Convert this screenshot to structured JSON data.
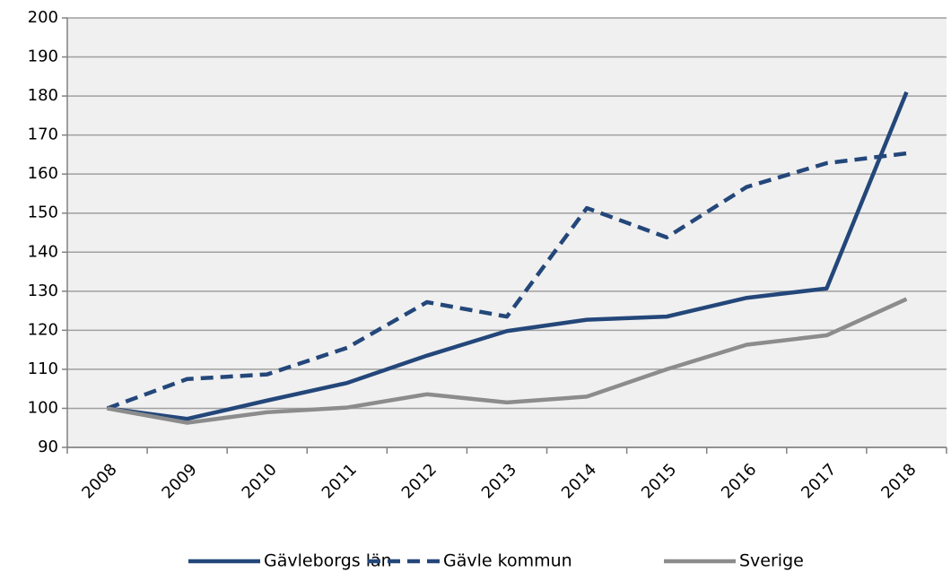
{
  "chart_data": {
    "type": "line",
    "categories": [
      "2008",
      "2009",
      "2010",
      "2011",
      "2012",
      "2013",
      "2014",
      "2015",
      "2016",
      "2017",
      "2018"
    ],
    "series": [
      {
        "name": "Gävleborgs län",
        "color": "#24477a",
        "line_style": "solid",
        "values": [
          100,
          97.3,
          102,
          106.5,
          113.5,
          119.8,
          122.7,
          123.5,
          128.3,
          130.7,
          181
        ]
      },
      {
        "name": "Gävle kommun",
        "color": "#24477a",
        "line_style": "dashed",
        "values": [
          100,
          107.5,
          108.7,
          115.5,
          127.2,
          123.5,
          151.3,
          143.8,
          156.7,
          162.8,
          165.3
        ]
      },
      {
        "name": "Sverige",
        "color": "#8c8c8c",
        "line_style": "solid",
        "values": [
          100,
          96.3,
          99,
          100.2,
          103.6,
          101.5,
          103,
          110,
          116.3,
          118.7,
          128
        ]
      }
    ],
    "ylim": [
      90,
      200
    ],
    "yticks": [
      90,
      100,
      110,
      120,
      130,
      140,
      150,
      160,
      170,
      180,
      190,
      200
    ],
    "grid": true,
    "legend": "bottom"
  }
}
